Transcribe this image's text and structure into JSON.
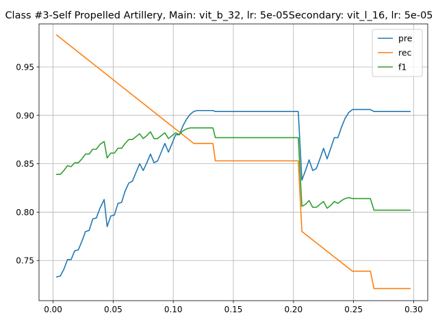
{
  "chart_data": {
    "type": "line",
    "title": "Class #3-Self Propelled Artillery, Main: vit_b_32, lr: 5e-05Secondary: vit_l_16, lr: 5e-05",
    "xlabel": "",
    "ylabel": "",
    "xlim": [
      -0.0117,
      0.3117
    ],
    "ylim": [
      0.7085,
      0.9945
    ],
    "xticks": [
      0.0,
      0.05,
      0.1,
      0.15,
      0.2,
      0.25,
      0.3
    ],
    "xtick_labels": [
      "0.00",
      "0.05",
      "0.10",
      "0.15",
      "0.20",
      "0.25",
      "0.30"
    ],
    "yticks": [
      0.75,
      0.8,
      0.85,
      0.9,
      0.95
    ],
    "ytick_labels": [
      "0.75",
      "0.80",
      "0.85",
      "0.90",
      "0.95"
    ],
    "grid": true,
    "legend_position": "upper right",
    "series": [
      {
        "name": "pre",
        "color": "#1f77b4",
        "points": [
          [
            0.003,
            0.733
          ],
          [
            0.006,
            0.734
          ],
          [
            0.009,
            0.741
          ],
          [
            0.012,
            0.751
          ],
          [
            0.015,
            0.751
          ],
          [
            0.018,
            0.76
          ],
          [
            0.021,
            0.761
          ],
          [
            0.024,
            0.77
          ],
          [
            0.027,
            0.78
          ],
          [
            0.03,
            0.781
          ],
          [
            0.033,
            0.793
          ],
          [
            0.036,
            0.794
          ],
          [
            0.039,
            0.804
          ],
          [
            0.0425,
            0.813
          ],
          [
            0.045,
            0.785
          ],
          [
            0.048,
            0.796
          ],
          [
            0.051,
            0.797
          ],
          [
            0.054,
            0.809
          ],
          [
            0.057,
            0.81
          ],
          [
            0.06,
            0.822
          ],
          [
            0.063,
            0.83
          ],
          [
            0.066,
            0.832
          ],
          [
            0.069,
            0.841
          ],
          [
            0.072,
            0.85
          ],
          [
            0.075,
            0.843
          ],
          [
            0.078,
            0.851
          ],
          [
            0.081,
            0.86
          ],
          [
            0.084,
            0.851
          ],
          [
            0.087,
            0.853
          ],
          [
            0.09,
            0.862
          ],
          [
            0.093,
            0.871
          ],
          [
            0.096,
            0.862
          ],
          [
            0.099,
            0.871
          ],
          [
            0.102,
            0.88
          ],
          [
            0.105,
            0.88
          ],
          [
            0.108,
            0.889
          ],
          [
            0.111,
            0.896
          ],
          [
            0.114,
            0.901
          ],
          [
            0.117,
            0.904
          ],
          [
            0.12,
            0.905
          ],
          [
            0.124,
            0.905
          ],
          [
            0.13,
            0.905
          ],
          [
            0.133,
            0.905
          ],
          [
            0.135,
            0.904
          ],
          [
            0.14,
            0.904
          ],
          [
            0.15,
            0.904
          ],
          [
            0.16,
            0.904
          ],
          [
            0.17,
            0.904
          ],
          [
            0.18,
            0.904
          ],
          [
            0.19,
            0.904
          ],
          [
            0.2,
            0.904
          ],
          [
            0.204,
            0.904
          ],
          [
            0.207,
            0.833
          ],
          [
            0.21,
            0.843
          ],
          [
            0.213,
            0.854
          ],
          [
            0.216,
            0.843
          ],
          [
            0.219,
            0.845
          ],
          [
            0.222,
            0.855
          ],
          [
            0.225,
            0.866
          ],
          [
            0.228,
            0.855
          ],
          [
            0.231,
            0.866
          ],
          [
            0.234,
            0.877
          ],
          [
            0.237,
            0.877
          ],
          [
            0.24,
            0.888
          ],
          [
            0.243,
            0.897
          ],
          [
            0.246,
            0.903
          ],
          [
            0.249,
            0.906
          ],
          [
            0.252,
            0.906
          ],
          [
            0.26,
            0.906
          ],
          [
            0.264,
            0.906
          ],
          [
            0.267,
            0.904
          ],
          [
            0.27,
            0.904
          ],
          [
            0.28,
            0.904
          ],
          [
            0.29,
            0.904
          ],
          [
            0.297,
            0.904
          ]
        ]
      },
      {
        "name": "rec",
        "color": "#ff7f0e",
        "points": [
          [
            0.003,
            0.983
          ],
          [
            0.117,
            0.871
          ],
          [
            0.133,
            0.871
          ],
          [
            0.135,
            0.853
          ],
          [
            0.204,
            0.853
          ],
          [
            0.207,
            0.78
          ],
          [
            0.249,
            0.739
          ],
          [
            0.264,
            0.739
          ],
          [
            0.267,
            0.721
          ],
          [
            0.297,
            0.721
          ]
        ]
      },
      {
        "name": "f1",
        "color": "#2ca02c",
        "points": [
          [
            0.003,
            0.839
          ],
          [
            0.006,
            0.839
          ],
          [
            0.009,
            0.843
          ],
          [
            0.012,
            0.848
          ],
          [
            0.015,
            0.847
          ],
          [
            0.018,
            0.851
          ],
          [
            0.021,
            0.851
          ],
          [
            0.024,
            0.855
          ],
          [
            0.027,
            0.86
          ],
          [
            0.03,
            0.86
          ],
          [
            0.033,
            0.865
          ],
          [
            0.036,
            0.865
          ],
          [
            0.039,
            0.87
          ],
          [
            0.0425,
            0.873
          ],
          [
            0.045,
            0.856
          ],
          [
            0.048,
            0.861
          ],
          [
            0.051,
            0.861
          ],
          [
            0.054,
            0.866
          ],
          [
            0.057,
            0.866
          ],
          [
            0.06,
            0.871
          ],
          [
            0.063,
            0.875
          ],
          [
            0.066,
            0.875
          ],
          [
            0.069,
            0.878
          ],
          [
            0.072,
            0.881
          ],
          [
            0.075,
            0.876
          ],
          [
            0.078,
            0.879
          ],
          [
            0.081,
            0.883
          ],
          [
            0.084,
            0.876
          ],
          [
            0.087,
            0.876
          ],
          [
            0.09,
            0.879
          ],
          [
            0.093,
            0.882
          ],
          [
            0.096,
            0.876
          ],
          [
            0.099,
            0.879
          ],
          [
            0.102,
            0.882
          ],
          [
            0.105,
            0.88
          ],
          [
            0.108,
            0.884
          ],
          [
            0.111,
            0.886
          ],
          [
            0.114,
            0.887
          ],
          [
            0.117,
            0.887
          ],
          [
            0.12,
            0.887
          ],
          [
            0.133,
            0.887
          ],
          [
            0.135,
            0.877
          ],
          [
            0.15,
            0.877
          ],
          [
            0.17,
            0.877
          ],
          [
            0.19,
            0.877
          ],
          [
            0.204,
            0.877
          ],
          [
            0.207,
            0.806
          ],
          [
            0.21,
            0.808
          ],
          [
            0.213,
            0.812
          ],
          [
            0.216,
            0.805
          ],
          [
            0.219,
            0.805
          ],
          [
            0.222,
            0.808
          ],
          [
            0.225,
            0.811
          ],
          [
            0.228,
            0.804
          ],
          [
            0.231,
            0.807
          ],
          [
            0.234,
            0.811
          ],
          [
            0.237,
            0.809
          ],
          [
            0.24,
            0.812
          ],
          [
            0.243,
            0.814
          ],
          [
            0.246,
            0.815
          ],
          [
            0.249,
            0.814
          ],
          [
            0.252,
            0.814
          ],
          [
            0.26,
            0.814
          ],
          [
            0.264,
            0.814
          ],
          [
            0.267,
            0.802
          ],
          [
            0.28,
            0.802
          ],
          [
            0.297,
            0.802
          ]
        ]
      }
    ]
  }
}
